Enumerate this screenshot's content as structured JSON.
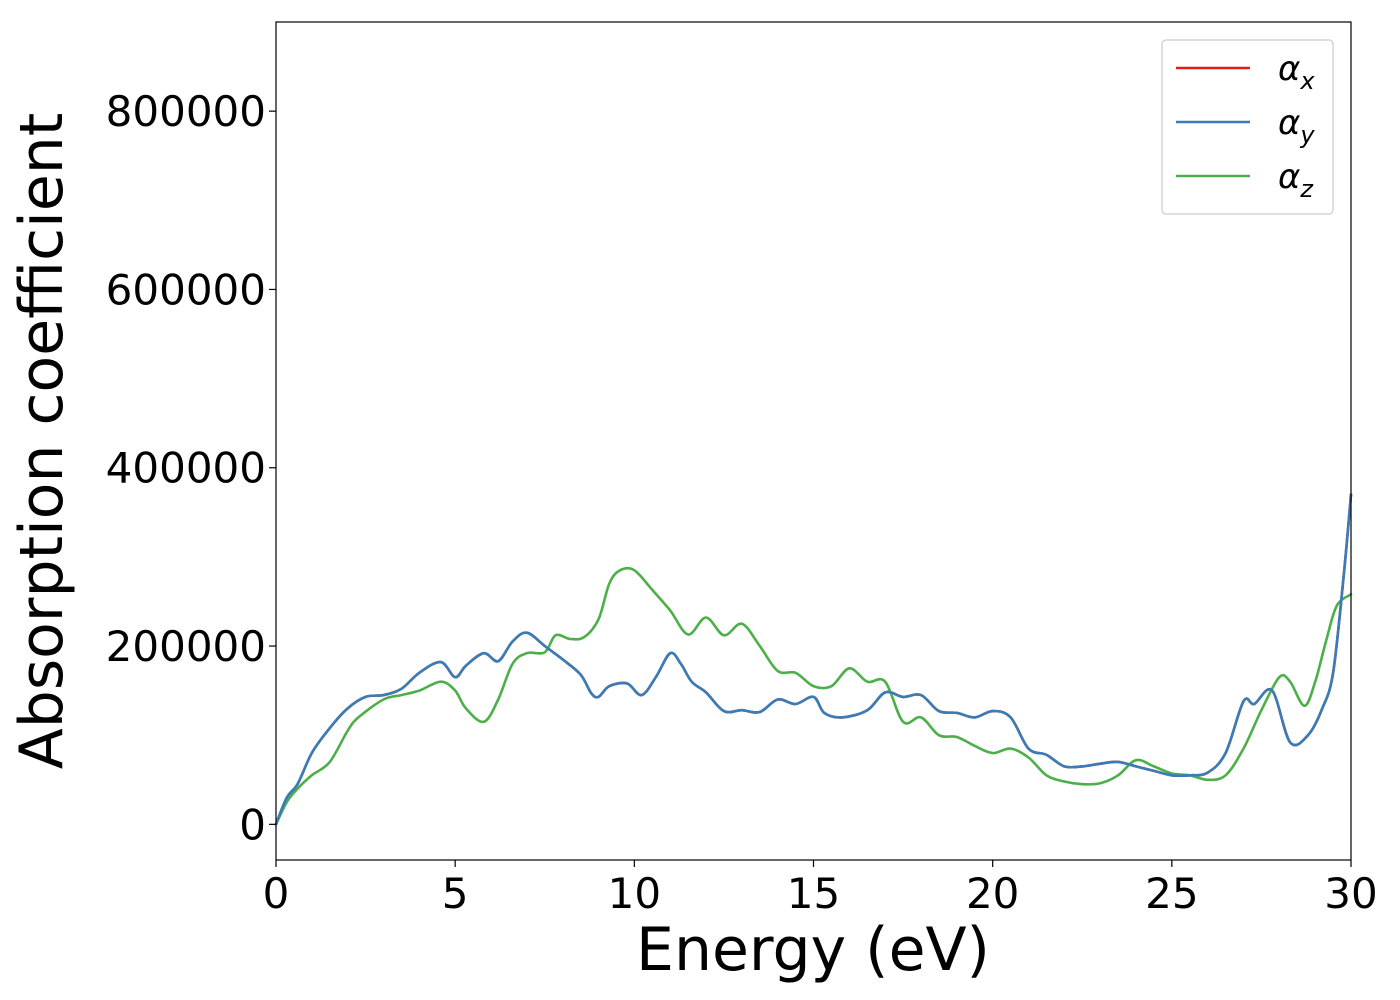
{
  "chart_data": {
    "type": "line",
    "title": "",
    "xlabel": "Energy (eV)",
    "ylabel": "Absorption coefficient",
    "xlim": [
      0,
      30
    ],
    "ylim": [
      -40000,
      900000
    ],
    "xticks": [
      0,
      5,
      10,
      15,
      20,
      25,
      30
    ],
    "xtick_labels": [
      "0",
      "5",
      "10",
      "15",
      "20",
      "25",
      "30"
    ],
    "yticks": [
      0,
      200000,
      400000,
      600000,
      800000
    ],
    "ytick_labels": [
      "0",
      "200000",
      "400000",
      "600000",
      "800000"
    ],
    "grid": false,
    "legend_position": "top-right",
    "series": [
      {
        "name": "α_x",
        "legend_base": "α",
        "legend_sub": "x",
        "color": "#e41a1c",
        "x": [
          0,
          0.3,
          0.6,
          1,
          1.5,
          2,
          2.5,
          3,
          3.5,
          4,
          4.6,
          5,
          5.3,
          5.8,
          6.2,
          6.6,
          7,
          7.5,
          8,
          8.5,
          8.8,
          9,
          9.3,
          9.8,
          10.2,
          10.6,
          11,
          11.3,
          11.6,
          12,
          12.5,
          13,
          13.5,
          14,
          14.5,
          15,
          15.3,
          15.8,
          16.5,
          17,
          17.5,
          18,
          18.5,
          19,
          19.5,
          20,
          20.5,
          21,
          21.5,
          22,
          22.5,
          23,
          23.5,
          24,
          24.5,
          25,
          25.5,
          26,
          26.5,
          27,
          27.3,
          27.8,
          28.3,
          28.8,
          29.2,
          29.5,
          29.8,
          30
        ],
        "y": [
          0,
          30000,
          45000,
          80000,
          108000,
          130000,
          143000,
          145000,
          152000,
          170000,
          182000,
          165000,
          178000,
          192000,
          183000,
          205000,
          215000,
          200000,
          185000,
          168000,
          147000,
          143000,
          155000,
          158000,
          145000,
          165000,
          192000,
          180000,
          160000,
          148000,
          127000,
          128000,
          126000,
          140000,
          135000,
          143000,
          125000,
          120000,
          128000,
          148000,
          143000,
          145000,
          127000,
          125000,
          120000,
          127000,
          120000,
          85000,
          78000,
          65000,
          65000,
          68000,
          70000,
          65000,
          60000,
          55000,
          55000,
          58000,
          80000,
          138000,
          135000,
          150000,
          92000,
          100000,
          130000,
          170000,
          280000,
          370000
        ]
      },
      {
        "name": "α_y",
        "legend_base": "α",
        "legend_sub": "y",
        "color": "#377eb8",
        "x": [
          0,
          0.3,
          0.6,
          1,
          1.5,
          2,
          2.5,
          3,
          3.5,
          4,
          4.6,
          5,
          5.3,
          5.8,
          6.2,
          6.6,
          7,
          7.5,
          8,
          8.5,
          8.8,
          9,
          9.3,
          9.8,
          10.2,
          10.6,
          11,
          11.3,
          11.6,
          12,
          12.5,
          13,
          13.5,
          14,
          14.5,
          15,
          15.3,
          15.8,
          16.5,
          17,
          17.5,
          18,
          18.5,
          19,
          19.5,
          20,
          20.5,
          21,
          21.5,
          22,
          22.5,
          23,
          23.5,
          24,
          24.5,
          25,
          25.5,
          26,
          26.5,
          27,
          27.3,
          27.8,
          28.3,
          28.8,
          29.2,
          29.5,
          29.8,
          30
        ],
        "y": [
          0,
          30000,
          45000,
          80000,
          108000,
          130000,
          143000,
          145000,
          152000,
          170000,
          182000,
          165000,
          178000,
          192000,
          183000,
          205000,
          215000,
          200000,
          185000,
          168000,
          147000,
          143000,
          155000,
          158000,
          145000,
          165000,
          192000,
          180000,
          160000,
          148000,
          127000,
          128000,
          126000,
          140000,
          135000,
          143000,
          125000,
          120000,
          128000,
          148000,
          143000,
          145000,
          127000,
          125000,
          120000,
          127000,
          120000,
          85000,
          78000,
          65000,
          65000,
          68000,
          70000,
          65000,
          60000,
          55000,
          55000,
          58000,
          80000,
          138000,
          135000,
          150000,
          92000,
          100000,
          130000,
          170000,
          280000,
          370000
        ]
      },
      {
        "name": "α_z",
        "legend_base": "α",
        "legend_sub": "z",
        "color": "#4daf4a",
        "x": [
          0,
          0.3,
          0.6,
          1,
          1.5,
          2,
          2.3,
          3,
          3.5,
          4,
          4.6,
          5,
          5.3,
          5.8,
          6.2,
          6.6,
          7,
          7.5,
          7.8,
          8.2,
          8.6,
          9,
          9.3,
          9.6,
          10,
          10.5,
          11,
          11.5,
          12,
          12.5,
          13,
          13.5,
          14,
          14.5,
          15,
          15.5,
          16,
          16.5,
          17,
          17.5,
          18,
          18.5,
          19,
          19.5,
          20,
          20.5,
          21,
          21.5,
          22,
          22.5,
          23,
          23.5,
          24,
          24.5,
          25,
          25.5,
          26,
          26.5,
          27,
          27.5,
          28,
          28.3,
          28.7,
          29,
          29.3,
          29.6,
          30
        ],
        "y": [
          0,
          25000,
          40000,
          55000,
          70000,
          105000,
          120000,
          140000,
          145000,
          150000,
          160000,
          150000,
          130000,
          115000,
          140000,
          180000,
          192000,
          193000,
          212000,
          208000,
          210000,
          230000,
          270000,
          285000,
          285000,
          263000,
          240000,
          213000,
          232000,
          212000,
          225000,
          200000,
          172000,
          170000,
          155000,
          155000,
          175000,
          160000,
          160000,
          115000,
          120000,
          100000,
          98000,
          88000,
          80000,
          85000,
          75000,
          55000,
          48000,
          45000,
          46000,
          55000,
          72000,
          65000,
          57000,
          55000,
          50000,
          55000,
          85000,
          128000,
          165000,
          160000,
          133000,
          160000,
          205000,
          245000,
          258000
        ]
      }
    ]
  }
}
